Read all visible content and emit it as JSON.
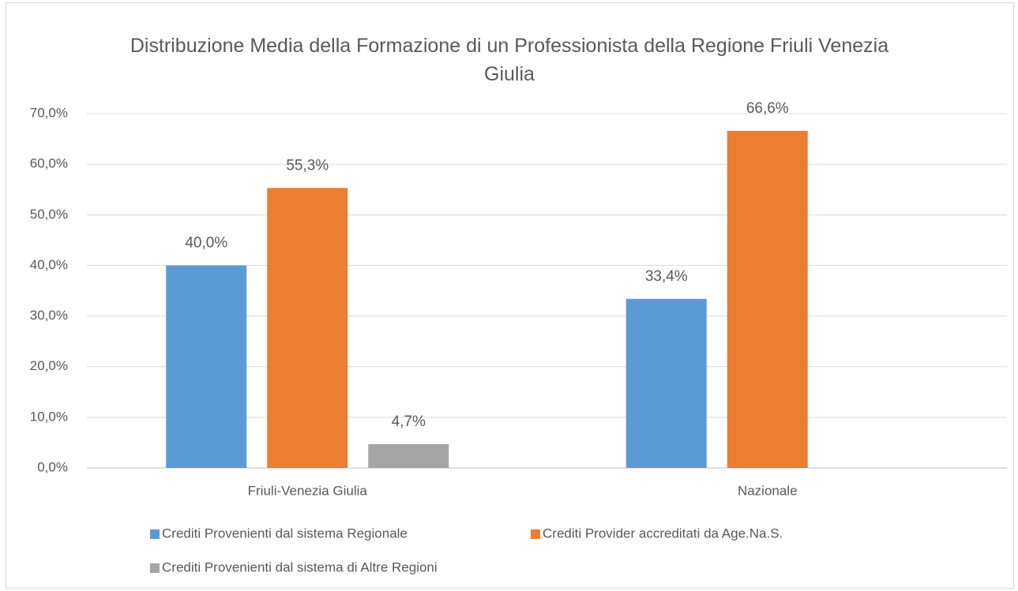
{
  "chart_data": {
    "type": "bar",
    "title": "Distribuzione Media della Formazione di un Professionista della Regione Friuli Venezia Giulia",
    "categories": [
      "Friuli-Venezia Giulia",
      "Nazionale"
    ],
    "series": [
      {
        "name": "Crediti Provenienti dal sistema Regionale",
        "color": "#5b9bd5",
        "values": [
          40.0,
          33.4
        ],
        "value_labels": [
          "40,0%",
          "33,4%"
        ]
      },
      {
        "name": "Crediti Provider accreditati da Age.Na.S.",
        "color": "#ed7d31",
        "values": [
          55.3,
          66.6
        ],
        "value_labels": [
          "55,3%",
          "66,6%"
        ]
      },
      {
        "name": "Crediti Provenienti dal sistema di Altre Regioni",
        "color": "#a5a5a5",
        "values": [
          4.7,
          null
        ],
        "value_labels": [
          "4,7%",
          null
        ]
      }
    ],
    "ylim": [
      0,
      70
    ],
    "yticks": [
      {
        "value": 0,
        "label": "0,0%"
      },
      {
        "value": 10,
        "label": "10,0%"
      },
      {
        "value": 20,
        "label": "20,0%"
      },
      {
        "value": 30,
        "label": "30,0%"
      },
      {
        "value": 40,
        "label": "40,0%"
      },
      {
        "value": 50,
        "label": "50,0%"
      },
      {
        "value": 60,
        "label": "60,0%"
      },
      {
        "value": 70,
        "label": "70,0%"
      }
    ],
    "grid": true,
    "legend": "bottom"
  }
}
